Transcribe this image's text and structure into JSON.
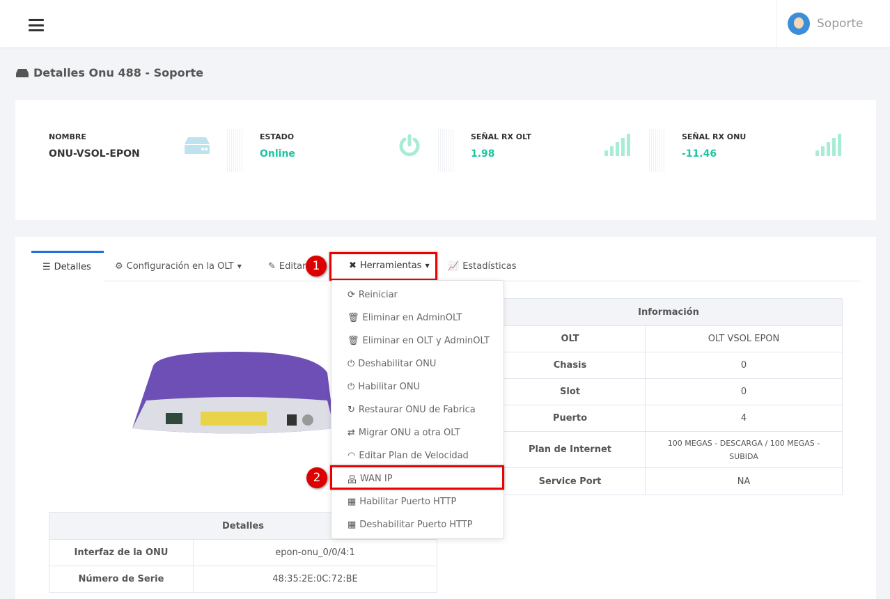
{
  "header": {
    "user_name": "Soporte"
  },
  "page_title": "Detalles Onu 488 - Soporte",
  "stats": [
    {
      "label": "NOMBRE",
      "value": "ONU-VSOL-EPON",
      "color": "#333333"
    },
    {
      "label": "ESTADO",
      "value": "Online",
      "color": "#1bc5a0"
    },
    {
      "label": "SEÑAL RX OLT",
      "value": "1.98",
      "color": "#1bc5a0"
    },
    {
      "label": "SEÑAL RX ONU",
      "value": "-11.46",
      "color": "#1bc5a0"
    }
  ],
  "tabs": [
    {
      "label": "Detalles"
    },
    {
      "label": "Configuración en la OLT"
    },
    {
      "label": "Editar"
    },
    {
      "label": "Herramientas"
    },
    {
      "label": "Estadísticas"
    }
  ],
  "annotations": [
    "1",
    "2"
  ],
  "tools_menu": [
    {
      "label": "Reiniciar",
      "icon": "refresh-icon"
    },
    {
      "label": "Eliminar en AdminOLT",
      "icon": "trash-icon"
    },
    {
      "label": "Eliminar en OLT y AdminOLT",
      "icon": "trash-icon"
    },
    {
      "label": "Deshabilitar ONU",
      "icon": "power-icon"
    },
    {
      "label": "Habilitar ONU",
      "icon": "power-icon"
    },
    {
      "label": "Restaurar ONU de Fabrica",
      "icon": "redo-icon"
    },
    {
      "label": "Migrar ONU a otra OLT",
      "icon": "exchange-icon"
    },
    {
      "label": "Editar Plan de Velocidad",
      "icon": "wifi-icon"
    },
    {
      "label": "WAN IP",
      "icon": "network-icon"
    },
    {
      "label": "Habilitar Puerto HTTP",
      "icon": "ethernet-icon"
    },
    {
      "label": "Deshabilitar Puerto HTTP",
      "icon": "ethernet-icon"
    }
  ],
  "info_table": {
    "title": "Información",
    "rows": [
      {
        "k": "OLT",
        "v": "OLT VSOL EPON"
      },
      {
        "k": "Chasis",
        "v": "0"
      },
      {
        "k": "Slot",
        "v": "0"
      },
      {
        "k": "Puerto",
        "v": "4"
      },
      {
        "k": "Plan de Internet",
        "v": "100 MEGAS - DESCARGA / 100 MEGAS - SUBIDA"
      },
      {
        "k": "Service Port",
        "v": "NA"
      }
    ]
  },
  "details_table": {
    "title": "Detalles",
    "rows": [
      {
        "k": "Interfaz de la ONU",
        "v": "epon-onu_0/0/4:1"
      },
      {
        "k": "Número de Serie",
        "v": "48:35:2E:0C:72:BE"
      }
    ]
  }
}
